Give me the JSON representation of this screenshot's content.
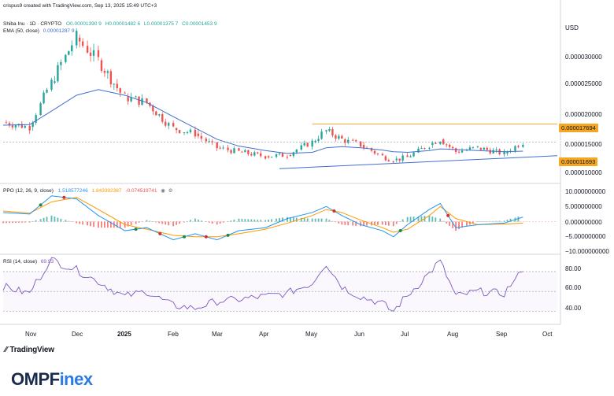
{
  "header": {
    "publisher": "crispus9 created with TradingView.com, Sep 13, 2025 15:49 UTC+3",
    "symbol_line": "Shiba Inu · 1D · CRYPTO",
    "ohlc": {
      "o": "O0.00001390 9",
      "h": "H0.00001482 6",
      "l": "L0.00001375 7",
      "c": "C0.00001453 9"
    },
    "ema_label": "EMA (50, close)",
    "ema_value": "0.00001287 9",
    "currency": "USD"
  },
  "panes": {
    "price": {
      "ticks": [
        "0.000030000",
        "0.000025000",
        "0.000020000",
        "0.000015000",
        "0.000010000"
      ],
      "resistance_label": "0.000017694",
      "support_label": "0.000011693"
    },
    "ppo": {
      "label": "PPO (12, 26, 9, close)",
      "values": [
        "1.518577246",
        "1.843392387",
        "-0.074519741"
      ],
      "ticks": [
        "10.000000000",
        "5.000000000",
        "0.000000000",
        "−5.000000000",
        "−10.000000000"
      ]
    },
    "rsi": {
      "label": "RSI (14, close)",
      "value": "69.93",
      "ticks": [
        "80.00",
        "60.00",
        "40.00"
      ]
    }
  },
  "xaxis": {
    "labels": [
      "Nov",
      "Dec",
      "2025",
      "Feb",
      "Mar",
      "Apr",
      "May",
      "Jun",
      "Jul",
      "Aug",
      "Sep",
      "Oct"
    ]
  },
  "footer": {
    "tv_logo": "TradingView",
    "brand_a": "OMPF",
    "brand_b": "inex"
  },
  "colors": {
    "up": "#26a69a",
    "down": "#ef5350",
    "ema": "#3f6fd0",
    "resistance": "#f5a623",
    "ppo_line": "#2196f3",
    "ppo_signal": "#ff9800",
    "rsi_line": "#7e57c2"
  },
  "chart_data": [
    {
      "type": "line",
      "title": "Shiba Inu · 1D · CRYPTO",
      "ylabel": "USD",
      "x": [
        "2024-10-15",
        "2024-11-01",
        "2024-11-15",
        "2024-12-01",
        "2024-12-15",
        "2025-01-01",
        "2025-01-15",
        "2025-02-01",
        "2025-02-15",
        "2025-03-01",
        "2025-03-15",
        "2025-04-01",
        "2025-04-15",
        "2025-05-01",
        "2025-05-10",
        "2025-05-20",
        "2025-06-01",
        "2025-06-15",
        "2025-06-22",
        "2025-07-01",
        "2025-07-15",
        "2025-07-22",
        "2025-08-01",
        "2025-08-15",
        "2025-09-01",
        "2025-09-13"
      ],
      "series": [
        {
          "name": "Close",
          "values": [
            1.8e-05,
            1.72e-05,
            2.5e-05,
            3.3e-05,
            2.9e-05,
            2.25e-05,
            2.15e-05,
            1.7e-05,
            1.6e-05,
            1.35e-05,
            1.28e-05,
            1.2e-05,
            1.22e-05,
            1.45e-05,
            1.65e-05,
            1.5e-05,
            1.4e-05,
            1.2e-05,
            1.13e-05,
            1.18e-05,
            1.4e-05,
            1.5e-05,
            1.28e-05,
            1.35e-05,
            1.25e-05,
            1.45e-05
          ]
        },
        {
          "name": "EMA (50, close)",
          "values": [
            1.75e-05,
            1.76e-05,
            2e-05,
            2.28e-05,
            2.38e-05,
            2.28e-05,
            2.15e-05,
            1.9e-05,
            1.7e-05,
            1.5e-05,
            1.38e-05,
            1.3e-05,
            1.25e-05,
            1.27e-05,
            1.35e-05,
            1.37e-05,
            1.35e-05,
            1.31e-05,
            1.28e-05,
            1.27e-05,
            1.3e-05,
            1.33e-05,
            1.32e-05,
            1.3e-05,
            1.28e-05,
            1.29e-05
          ]
        }
      ],
      "resistance": 1.7694e-05,
      "support": 1.1693e-05,
      "ylim": [
        9e-06,
        3.45e-05
      ]
    },
    {
      "type": "line",
      "title": "PPO (12, 26, 9, close)",
      "ylim": [
        -10,
        10
      ],
      "x": [
        "2024-10-15",
        "2024-11-01",
        "2024-11-15",
        "2024-12-01",
        "2024-12-15",
        "2025-01-01",
        "2025-01-15",
        "2025-02-01",
        "2025-02-15",
        "2025-03-01",
        "2025-03-15",
        "2025-04-01",
        "2025-04-15",
        "2025-05-01",
        "2025-05-10",
        "2025-05-20",
        "2025-06-01",
        "2025-06-15",
        "2025-06-22",
        "2025-07-01",
        "2025-07-15",
        "2025-07-22",
        "2025-08-01",
        "2025-08-15",
        "2025-09-01",
        "2025-09-13"
      ],
      "series": [
        {
          "name": "PPO",
          "values": [
            3,
            2.5,
            8.5,
            7.5,
            2,
            -3,
            -2,
            -6,
            -4,
            -6,
            -3,
            -2,
            1,
            3,
            5,
            2,
            -1,
            -3,
            -5,
            -1,
            4,
            6,
            -2,
            -1,
            -0.5,
            1.5
          ]
        },
        {
          "name": "Signal",
          "values": [
            3.5,
            2.8,
            6.5,
            8,
            4,
            -1,
            -2.5,
            -4.5,
            -5,
            -5,
            -4,
            -2.5,
            -0.5,
            2,
            4,
            3,
            0.5,
            -2,
            -3.5,
            -2.5,
            2,
            5,
            1,
            -1,
            -0.8,
            -0.5
          ]
        }
      ]
    },
    {
      "type": "line",
      "title": "RSI (14, close)",
      "ylim": [
        20,
        85
      ],
      "x": [
        "2024-10-15",
        "2024-11-01",
        "2024-11-15",
        "2024-12-01",
        "2024-12-15",
        "2025-01-01",
        "2025-01-15",
        "2025-02-01",
        "2025-02-15",
        "2025-03-01",
        "2025-03-15",
        "2025-04-01",
        "2025-04-15",
        "2025-05-01",
        "2025-05-10",
        "2025-05-20",
        "2025-06-01",
        "2025-06-15",
        "2025-06-22",
        "2025-07-01",
        "2025-07-15",
        "2025-07-22",
        "2025-08-01",
        "2025-08-15",
        "2025-09-01",
        "2025-09-13"
      ],
      "series": [
        {
          "name": "RSI",
          "values": [
            55,
            48,
            82,
            72,
            60,
            45,
            50,
            36,
            33,
            40,
            42,
            45,
            48,
            58,
            78,
            55,
            45,
            38,
            30,
            45,
            68,
            80,
            45,
            50,
            48,
            70
          ]
        }
      ]
    }
  ]
}
